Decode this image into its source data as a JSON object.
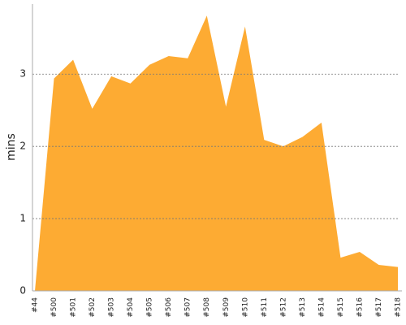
{
  "chart_data": {
    "type": "area",
    "y_label": "mins",
    "categories": [
      "#44",
      "#500",
      "#501",
      "#502",
      "#503",
      "#504",
      "#505",
      "#506",
      "#507",
      "#508",
      "#509",
      "#510",
      "#511",
      "#512",
      "#513",
      "#514",
      "#515",
      "#516",
      "#517",
      "#518"
    ],
    "values": [
      0,
      2.94,
      3.2,
      2.52,
      2.97,
      2.87,
      3.13,
      3.25,
      3.22,
      3.81,
      2.55,
      3.66,
      2.09,
      2.0,
      2.13,
      2.33,
      0.46,
      0.54,
      0.36,
      0.33
    ],
    "color": "#fdab33",
    "ylim": [
      0,
      3.97
    ],
    "yticks": [
      0,
      1,
      2,
      3
    ],
    "grid": true
  }
}
